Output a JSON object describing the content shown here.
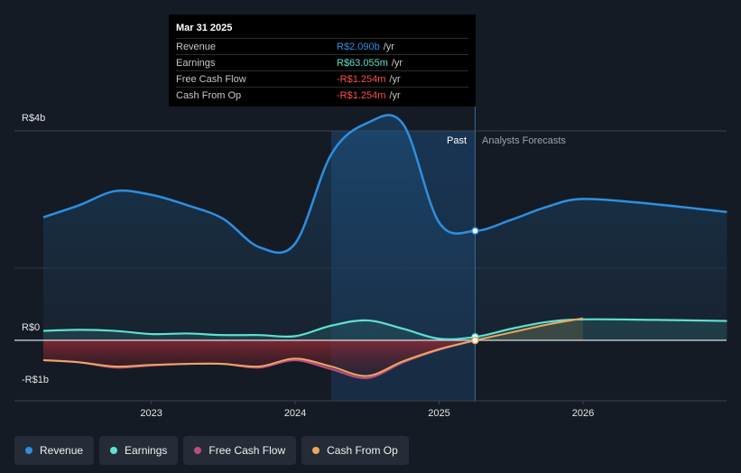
{
  "tooltip": {
    "date": "Mar 31 2025",
    "rows": [
      {
        "label": "Revenue",
        "value": "R$2.090b",
        "unit": "/yr",
        "color": "#2e8fe0"
      },
      {
        "label": "Earnings",
        "value": "R$63.055m",
        "unit": "/yr",
        "color": "#5ee0d2"
      },
      {
        "label": "Free Cash Flow",
        "value": "-R$1.254m",
        "unit": "/yr",
        "color": "#ff4d4d"
      },
      {
        "label": "Cash From Op",
        "value": "-R$1.254m",
        "unit": "/yr",
        "color": "#ff4d4d"
      }
    ]
  },
  "labels": {
    "past": "Past",
    "forecast": "Analysts Forecasts"
  },
  "legend": [
    {
      "label": "Revenue",
      "color": "#2e8fe0"
    },
    {
      "label": "Earnings",
      "color": "#5ee0d2"
    },
    {
      "label": "Free Cash Flow",
      "color": "#c04a82"
    },
    {
      "label": "Cash From Op",
      "color": "#e8a860"
    }
  ],
  "chart_data": {
    "type": "line",
    "title": "",
    "x_unit": "year",
    "y_unit": "R$ billions",
    "xlim": [
      2022.25,
      2027.0
    ],
    "ylim": [
      -1.0,
      4.0
    ],
    "y_ticks": [
      {
        "value": 4,
        "label": "R$4b"
      },
      {
        "value": 0,
        "label": "R$0"
      },
      {
        "value": -1,
        "label": "-R$1b"
      }
    ],
    "x_ticks": [
      {
        "value": 2023,
        "label": "2023"
      },
      {
        "value": 2024,
        "label": "2024"
      },
      {
        "value": 2025,
        "label": "2025"
      },
      {
        "value": 2026,
        "label": "2026"
      }
    ],
    "past_highlight_range": [
      2024.25,
      2025.25
    ],
    "forecast_start": 2025.25,
    "series": [
      {
        "name": "Revenue",
        "color": "#2e8fe0",
        "x": [
          2022.25,
          2022.5,
          2022.75,
          2023.0,
          2023.25,
          2023.5,
          2023.75,
          2024.0,
          2024.25,
          2024.5,
          2024.75,
          2025.0,
          2025.25,
          2025.5,
          2025.75,
          2026.0,
          2026.5,
          2027.0
        ],
        "y": [
          2.35,
          2.58,
          2.85,
          2.78,
          2.58,
          2.32,
          1.78,
          1.85,
          3.55,
          4.15,
          4.13,
          2.25,
          2.09,
          2.3,
          2.55,
          2.7,
          2.6,
          2.45
        ]
      },
      {
        "name": "Earnings",
        "color": "#5ee0d2",
        "x": [
          2022.25,
          2022.5,
          2022.75,
          2023.0,
          2023.25,
          2023.5,
          2023.75,
          2024.0,
          2024.25,
          2024.5,
          2024.75,
          2025.0,
          2025.25,
          2025.5,
          2025.75,
          2026.0,
          2026.5,
          2027.0
        ],
        "y": [
          0.18,
          0.2,
          0.18,
          0.12,
          0.13,
          0.1,
          0.1,
          0.08,
          0.28,
          0.38,
          0.22,
          0.03,
          0.063,
          0.22,
          0.35,
          0.4,
          0.39,
          0.37
        ]
      },
      {
        "name": "Free Cash Flow",
        "color": "#c04a82",
        "x": [
          2022.25,
          2022.5,
          2022.75,
          2023.0,
          2023.25,
          2023.5,
          2023.75,
          2024.0,
          2024.25,
          2024.5,
          2024.75,
          2025.0,
          2025.25
        ],
        "y": [
          -0.38,
          -0.42,
          -0.52,
          -0.48,
          -0.45,
          -0.45,
          -0.52,
          -0.38,
          -0.55,
          -0.72,
          -0.42,
          -0.18,
          -0.0013
        ]
      },
      {
        "name": "Cash From Op",
        "color": "#e8a860",
        "x": [
          2022.25,
          2022.5,
          2022.75,
          2023.0,
          2023.25,
          2023.5,
          2023.75,
          2024.0,
          2024.25,
          2024.5,
          2024.75,
          2025.0,
          2025.25,
          2025.5,
          2025.75,
          2026.0
        ],
        "y": [
          -0.38,
          -0.42,
          -0.5,
          -0.47,
          -0.45,
          -0.45,
          -0.5,
          -0.35,
          -0.5,
          -0.68,
          -0.4,
          -0.17,
          -0.0013,
          0.15,
          0.3,
          0.42
        ]
      }
    ]
  }
}
